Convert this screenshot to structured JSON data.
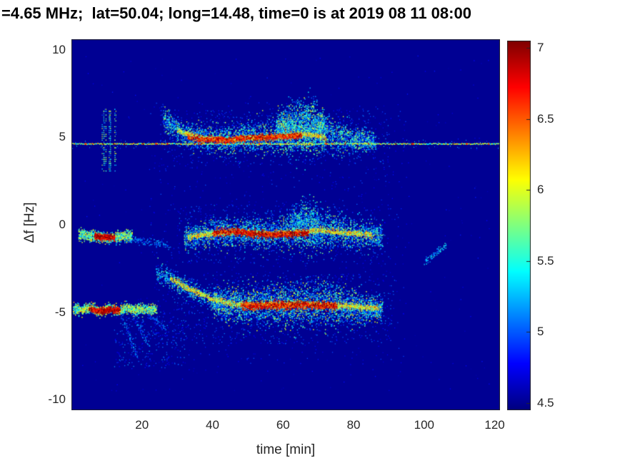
{
  "chart_data": {
    "type": "heatmap",
    "subtype": "doppler-spectrogram",
    "title": "=4.65 MHz;  lat=50.04; long=14.48, time=0 is at 2019 08 11 08:00",
    "xlabel": "time [min]",
    "ylabel": "Δf [Hz]",
    "x_range": [
      0,
      121.5
    ],
    "y_range": [
      -10.6,
      10.6
    ],
    "x_ticks": [
      20,
      40,
      60,
      80,
      100,
      120
    ],
    "y_ticks": [
      10,
      5,
      0,
      -5,
      -10
    ],
    "grid": false,
    "colormap": "jet",
    "background_value": 4.5,
    "colorbar": {
      "min": 4.45,
      "max": 7.05,
      "ticks": [
        7,
        6.5,
        6,
        5.5,
        5,
        4.5
      ]
    },
    "features": [
      {
        "name": "speckle-wide",
        "kind": "speckle",
        "t": [
          2,
          120
        ],
        "f": [
          -9.5,
          9.8
        ],
        "count": 320,
        "amp": [
          4.55,
          4.85
        ],
        "size": 1.3
      },
      {
        "name": "speckle-mid",
        "kind": "speckle",
        "t": [
          22,
          95
        ],
        "f": [
          -8,
          7
        ],
        "count": 850,
        "amp": [
          4.6,
          5.0
        ],
        "size": 1.3
      },
      {
        "name": "speckle-upper",
        "kind": "speckle",
        "t": [
          25,
          90
        ],
        "f": [
          3.4,
          6.6
        ],
        "count": 500,
        "amp": [
          4.7,
          5.15
        ],
        "size": 1.3
      },
      {
        "name": "speckle-midband",
        "kind": "speckle",
        "t": [
          30,
          90
        ],
        "f": [
          -2.2,
          1.2
        ],
        "count": 450,
        "amp": [
          4.7,
          5.15
        ],
        "size": 1.3
      },
      {
        "name": "speckle-lowband",
        "kind": "speckle",
        "t": [
          24,
          92
        ],
        "f": [
          -6.8,
          -2.8
        ],
        "count": 600,
        "amp": [
          4.7,
          5.15
        ],
        "size": 1.3
      },
      {
        "name": "speckle-below-low",
        "kind": "speckle",
        "t": [
          12,
          32
        ],
        "f": [
          -8.2,
          -5.2
        ],
        "count": 220,
        "amp": [
          4.7,
          5.2
        ],
        "size": 1.3
      },
      {
        "name": "streak-low-1",
        "kind": "cloud",
        "path": [
          [
            14,
            -5.1
          ],
          [
            19,
            -7.7
          ]
        ],
        "spread": 0.15,
        "density": 14,
        "amp": [
          4.8,
          5.3
        ],
        "size": 1.4
      },
      {
        "name": "streak-low-2",
        "kind": "cloud",
        "path": [
          [
            17,
            -5.0
          ],
          [
            22,
            -6.9
          ]
        ],
        "spread": 0.15,
        "density": 12,
        "amp": [
          4.8,
          5.3
        ],
        "size": 1.4
      },
      {
        "name": "streak-low-3",
        "kind": "cloud",
        "path": [
          [
            21,
            -4.9
          ],
          [
            27,
            -6.1
          ]
        ],
        "spread": 0.15,
        "density": 10,
        "amp": [
          4.8,
          5.25
        ],
        "size": 1.4
      },
      {
        "name": "upper-cloud",
        "kind": "cloud",
        "path": [
          [
            26,
            6.05
          ],
          [
            29,
            5.6
          ],
          [
            33,
            5.15
          ],
          [
            38,
            4.95
          ],
          [
            44,
            4.9
          ],
          [
            50,
            5.0
          ],
          [
            56,
            5.05
          ],
          [
            62,
            5.25
          ],
          [
            68,
            5.45
          ],
          [
            74,
            5.1
          ],
          [
            80,
            4.9
          ],
          [
            86,
            4.75
          ]
        ],
        "spread": [
          0.3,
          0.3,
          0.3,
          0.35,
          0.4,
          0.4,
          0.45,
          0.6,
          0.65,
          0.5,
          0.35,
          0.25
        ],
        "density": 55,
        "amp": [
          4.85,
          6.0
        ],
        "bias": 1.5,
        "size": 1.5
      },
      {
        "name": "upper-blob",
        "kind": "cloud",
        "path": [
          [
            58,
            5.5
          ],
          [
            63,
            5.7
          ],
          [
            68,
            5.7
          ],
          [
            72,
            5.4
          ]
        ],
        "spread": [
          0.45,
          0.65,
          0.7,
          0.5
        ],
        "density": 90,
        "amp": [
          5.0,
          6.1
        ],
        "bias": 1.4,
        "size": 1.5
      },
      {
        "name": "mid-tail",
        "kind": "cloud",
        "path": [
          [
            16,
            -0.75
          ],
          [
            22,
            -1.0
          ],
          [
            28,
            -1.15
          ]
        ],
        "spread": 0.12,
        "density": 10,
        "amp": [
          4.85,
          5.3
        ],
        "size": 1.4
      },
      {
        "name": "mid-cloud",
        "kind": "cloud",
        "path": [
          [
            32,
            -0.75
          ],
          [
            38,
            -0.55
          ],
          [
            44,
            -0.4
          ],
          [
            50,
            -0.45
          ],
          [
            56,
            -0.5
          ],
          [
            62,
            -0.4
          ],
          [
            67,
            -0.25
          ],
          [
            72,
            -0.3
          ],
          [
            78,
            -0.45
          ],
          [
            84,
            -0.55
          ],
          [
            88,
            -0.6
          ]
        ],
        "spread": [
          0.3,
          0.35,
          0.4,
          0.4,
          0.45,
          0.5,
          0.6,
          0.55,
          0.45,
          0.35,
          0.3
        ],
        "density": 60,
        "amp": [
          4.85,
          6.0
        ],
        "bias": 1.5,
        "size": 1.5
      },
      {
        "name": "mid-blob",
        "kind": "cloud",
        "path": [
          [
            62,
            0.0
          ],
          [
            66,
            0.2
          ],
          [
            70,
            0.1
          ]
        ],
        "spread": [
          0.5,
          0.6,
          0.5
        ],
        "density": 60,
        "amp": [
          4.9,
          5.8
        ],
        "bias": 1.4,
        "size": 1.5
      },
      {
        "name": "low-branch",
        "kind": "cloud",
        "path": [
          [
            24,
            -2.7
          ],
          [
            28,
            -3.05
          ],
          [
            32,
            -3.5
          ],
          [
            36,
            -3.95
          ],
          [
            40,
            -4.25
          ],
          [
            44,
            -4.45
          ]
        ],
        "spread": 0.28,
        "density": 30,
        "amp": [
          4.85,
          5.8
        ],
        "bias": 1.3,
        "size": 1.5
      },
      {
        "name": "low-cloud",
        "kind": "cloud",
        "path": [
          [
            40,
            -4.45
          ],
          [
            46,
            -4.55
          ],
          [
            52,
            -4.6
          ],
          [
            58,
            -4.5
          ],
          [
            64,
            -4.55
          ],
          [
            70,
            -4.5
          ],
          [
            76,
            -4.6
          ],
          [
            82,
            -4.7
          ],
          [
            88,
            -4.8
          ]
        ],
        "spread": [
          0.4,
          0.5,
          0.55,
          0.6,
          0.65,
          0.65,
          0.55,
          0.4,
          0.28
        ],
        "density": 75,
        "amp": [
          4.85,
          6.1
        ],
        "bias": 1.5,
        "size": 1.5
      },
      {
        "name": "mid-early",
        "kind": "cloud",
        "path": [
          [
            2,
            -0.55
          ],
          [
            5,
            -0.6
          ],
          [
            8,
            -0.68
          ],
          [
            11,
            -0.72
          ],
          [
            14,
            -0.62
          ],
          [
            17,
            -0.6
          ]
        ],
        "spread": 0.16,
        "density": 60,
        "amp": [
          5.1,
          6.2
        ],
        "size": 1.5
      },
      {
        "name": "low-early",
        "kind": "cloud",
        "path": [
          [
            0.5,
            -4.8
          ],
          [
            3,
            -4.85
          ],
          [
            5.5,
            -4.7
          ],
          [
            8,
            -4.95
          ],
          [
            10.5,
            -4.7
          ],
          [
            13,
            -4.95
          ],
          [
            15.5,
            -4.75
          ],
          [
            18,
            -4.85
          ],
          [
            21,
            -4.8
          ],
          [
            24,
            -4.82
          ]
        ],
        "spread": 0.14,
        "density": 55,
        "amp": [
          5.2,
          6.3
        ],
        "size": 1.5
      },
      {
        "name": "upper-spikes",
        "kind": "spikes",
        "t": [
          7.5,
          12.5
        ],
        "f": [
          3.1,
          6.7
        ],
        "count": 14,
        "amp": [
          4.9,
          6.0
        ],
        "size": 1.3
      },
      {
        "name": "carrier-line",
        "kind": "line",
        "f": 4.62,
        "amp": [
          5.3,
          6.4
        ],
        "sparkle": 0.035,
        "sparkleAmp": [
          6.6,
          7.2
        ],
        "fuzz": 0.18,
        "size": 1.4
      },
      {
        "name": "upper-thread",
        "kind": "cloud",
        "path": [
          [
            30,
            5.4
          ],
          [
            36,
            5.0
          ],
          [
            44,
            4.9
          ],
          [
            52,
            5.0
          ],
          [
            60,
            5.1
          ],
          [
            66,
            5.2
          ],
          [
            72,
            5.0
          ]
        ],
        "spread": 0.07,
        "density": 30,
        "amp": [
          5.6,
          6.5
        ],
        "size": 1.4
      },
      {
        "name": "mid-thread",
        "kind": "cloud",
        "path": [
          [
            33,
            -0.7
          ],
          [
            40,
            -0.45
          ],
          [
            48,
            -0.4
          ],
          [
            56,
            -0.5
          ],
          [
            64,
            -0.4
          ],
          [
            70,
            -0.3
          ],
          [
            78,
            -0.45
          ],
          [
            85,
            -0.55
          ]
        ],
        "spread": 0.08,
        "density": 28,
        "amp": [
          5.6,
          6.5
        ],
        "size": 1.4
      },
      {
        "name": "low-thread",
        "kind": "cloud",
        "path": [
          [
            28,
            -3.05
          ],
          [
            34,
            -3.7
          ],
          [
            40,
            -4.25
          ],
          [
            48,
            -4.55
          ],
          [
            56,
            -4.55
          ],
          [
            64,
            -4.5
          ],
          [
            72,
            -4.55
          ],
          [
            80,
            -4.65
          ],
          [
            87,
            -4.75
          ]
        ],
        "spread": 0.08,
        "density": 28,
        "amp": [
          5.6,
          6.5
        ],
        "size": 1.4
      },
      {
        "name": "upper-core",
        "kind": "cloud",
        "path": [
          [
            33,
            5.05
          ],
          [
            38,
            4.9
          ],
          [
            44,
            4.88
          ],
          [
            50,
            4.98
          ],
          [
            55,
            5.02
          ],
          [
            60,
            5.08
          ],
          [
            65,
            5.15
          ]
        ],
        "spread": 0.09,
        "density": 26,
        "amp": [
          6.3,
          7.1
        ],
        "size": 1.7
      },
      {
        "name": "mid-early-core",
        "kind": "cloud",
        "path": [
          [
            6.5,
            -0.62
          ],
          [
            9,
            -0.68
          ],
          [
            12,
            -0.7
          ]
        ],
        "spread": 0.09,
        "density": 45,
        "amp": [
          6.5,
          7.2
        ],
        "size": 1.8
      },
      {
        "name": "mid-core",
        "kind": "cloud",
        "path": [
          [
            40,
            -0.45
          ],
          [
            46,
            -0.35
          ],
          [
            52,
            -0.5
          ],
          [
            58,
            -0.55
          ],
          [
            63,
            -0.5
          ],
          [
            67,
            -0.42
          ]
        ],
        "spread": 0.1,
        "density": 30,
        "amp": [
          6.4,
          7.2
        ],
        "size": 1.7
      },
      {
        "name": "low-early-core",
        "kind": "cloud",
        "path": [
          [
            5,
            -4.78
          ],
          [
            7,
            -4.85
          ],
          [
            9,
            -4.9
          ],
          [
            11,
            -4.82
          ],
          [
            13.5,
            -4.85
          ]
        ],
        "spread": 0.09,
        "density": 40,
        "amp": [
          6.5,
          7.2
        ],
        "size": 1.8
      },
      {
        "name": "low-core",
        "kind": "cloud",
        "path": [
          [
            48,
            -4.6
          ],
          [
            54,
            -4.62
          ],
          [
            60,
            -4.58
          ],
          [
            66,
            -4.55
          ],
          [
            71,
            -4.6
          ],
          [
            75,
            -4.62
          ]
        ],
        "spread": 0.12,
        "density": 34,
        "amp": [
          6.3,
          7.2
        ],
        "size": 1.7
      },
      {
        "name": "mid-late-arc",
        "kind": "cloud",
        "path": [
          [
            100,
            -2.1
          ],
          [
            102,
            -1.8
          ],
          [
            104,
            -1.45
          ],
          [
            106,
            -1.15
          ]
        ],
        "spread": 0.12,
        "density": 14,
        "amp": [
          4.95,
          5.6
        ],
        "size": 1.4
      }
    ]
  }
}
